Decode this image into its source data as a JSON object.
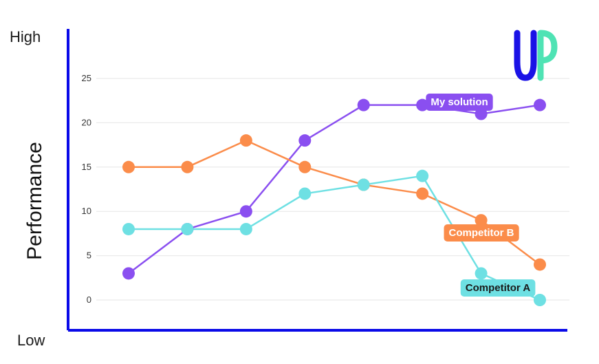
{
  "brand": {
    "logo_text": "UP",
    "colors": {
      "u": "#1a12e6",
      "p": "#4fe3b4"
    }
  },
  "axes": {
    "y_title": "Performance",
    "y_top_label": "High",
    "y_bottom_label": "Low",
    "axis_color": "#0a0ae8",
    "grid_color": "#e6e6e6"
  },
  "chart_data": {
    "type": "line",
    "x": [
      1,
      2,
      3,
      4,
      5,
      6,
      7,
      8
    ],
    "ylim": [
      0,
      25
    ],
    "yticks": [
      "0",
      "5",
      "10",
      "15",
      "20",
      "25"
    ],
    "grid": true,
    "series": [
      {
        "name": "My solution",
        "color": "#8a4ff0",
        "values": [
          3,
          8,
          10,
          18,
          22,
          22,
          21,
          22
        ]
      },
      {
        "name": "Competitor B",
        "color": "#fb8c4a",
        "values": [
          15,
          15,
          18,
          15,
          13,
          12,
          9,
          4
        ]
      },
      {
        "name": "Competitor A",
        "color": "#6ee0e3",
        "values": [
          8,
          8,
          8,
          12,
          13,
          14,
          3,
          0
        ]
      }
    ]
  }
}
